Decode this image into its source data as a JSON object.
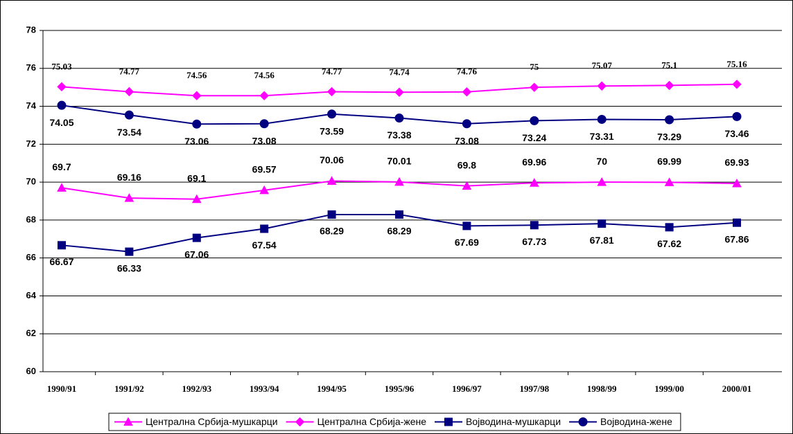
{
  "chart_data": {
    "type": "line",
    "categories": [
      "1990/91",
      "1991/92",
      "1992/93",
      "1993/94",
      "1994/95",
      "1995/96",
      "1996/97",
      "1997/98",
      "1998/99",
      "1999/00",
      "2000/01"
    ],
    "series": [
      {
        "name": "Централна Србија-мушкарци",
        "color": "#ff00ff",
        "marker": "triangle",
        "values": [
          69.7,
          69.16,
          69.1,
          69.57,
          70.06,
          70.01,
          69.8,
          69.96,
          70,
          69.99,
          69.93
        ]
      },
      {
        "name": "Централна Србија-жене",
        "color": "#ff00ff",
        "marker": "diamond",
        "values": [
          75.03,
          74.77,
          74.56,
          74.56,
          74.77,
          74.74,
          74.76,
          75,
          75.07,
          75.1,
          75.16
        ]
      },
      {
        "name": "Војводина-мушкарци",
        "color": "#000080",
        "marker": "square",
        "values": [
          66.67,
          66.33,
          67.06,
          67.54,
          68.29,
          68.29,
          67.69,
          67.73,
          67.81,
          67.62,
          67.86
        ]
      },
      {
        "name": "Војводина-жене",
        "color": "#000080",
        "marker": "circle",
        "values": [
          74.05,
          73.54,
          73.06,
          73.08,
          73.59,
          73.38,
          73.08,
          73.24,
          73.31,
          73.29,
          73.46
        ]
      }
    ],
    "ylim": [
      60,
      78
    ],
    "yticks": [
      60,
      62,
      64,
      66,
      68,
      70,
      72,
      74,
      76,
      78
    ],
    "grid": true,
    "legend": "bottom"
  }
}
